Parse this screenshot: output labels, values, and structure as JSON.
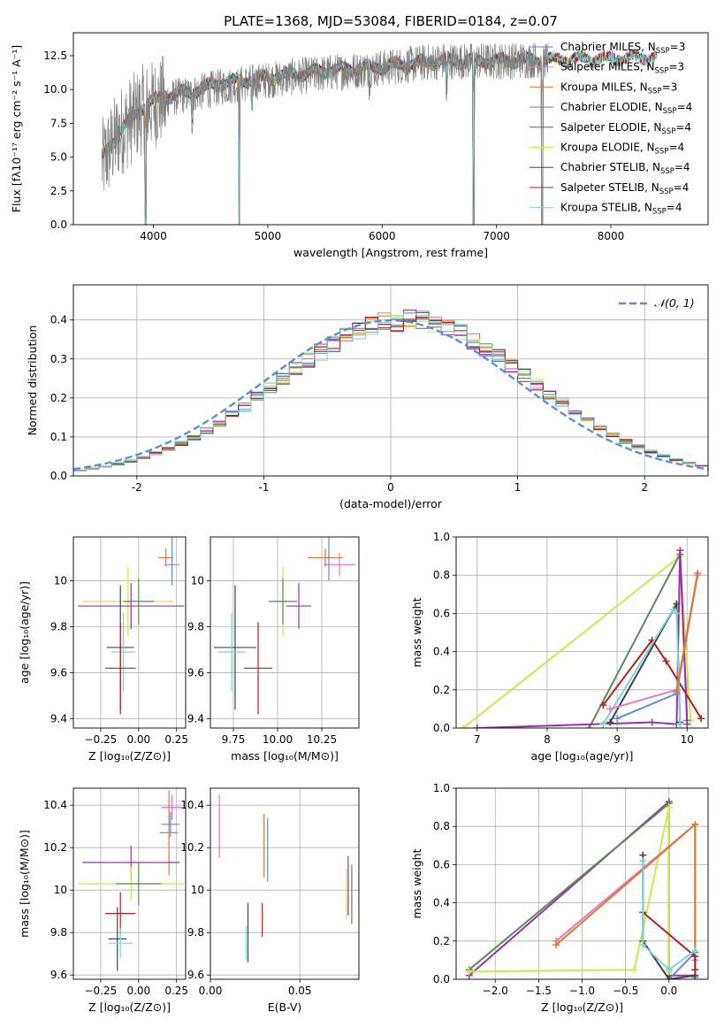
{
  "figure": {
    "title": "PLATE=1368, MJD=53084, FIBERID=0184, z=0.07"
  },
  "colors": {
    "data": "#808080",
    "Chabrier MILES": "#5b8fd6",
    "Salpeter MILES": "#e377c2",
    "Kroupa MILES": "#d97a2b",
    "Chabrier ELODIE": "#5a8a5a",
    "Salpeter ELODIE": "#9b30b0",
    "Kroupa ELODIE": "#cde84a",
    "Chabrier STELIB": "#444444",
    "Salpeter STELIB": "#b22222",
    "Kroupa STELIB": "#7fd4d8",
    "normal": "#5b8fd6"
  },
  "chart_data": [
    {
      "id": "spectrum",
      "type": "line",
      "xlabel": "wavelength [Angstrom, rest frame]",
      "ylabel": "Flux [fλ10⁻¹⁷ erg cm⁻² s⁻¹ A⁻¹]",
      "xlim": [
        3300,
        8850
      ],
      "ylim": [
        0,
        14.2
      ],
      "xticks": [
        4000,
        5000,
        6000,
        7000,
        8000
      ],
      "yticks": [
        0.0,
        2.5,
        5.0,
        7.5,
        10.0,
        12.5
      ],
      "legend_position": "top-right",
      "legend": [
        {
          "model": "Chabrier MILES",
          "label": "Chabrier MILES, N",
          "sub": "SSP",
          "tail": "=3"
        },
        {
          "model": "Salpeter MILES",
          "label": "Salpeter MILES, N",
          "sub": "SSP",
          "tail": "=3"
        },
        {
          "model": "Kroupa MILES",
          "label": "Kroupa MILES, N",
          "sub": "SSP",
          "tail": "=3"
        },
        {
          "model": "Chabrier ELODIE",
          "label": "Chabrier ELODIE, N",
          "sub": "SSP",
          "tail": "=4"
        },
        {
          "model": "Salpeter ELODIE",
          "label": "Salpeter ELODIE, N",
          "sub": "SSP",
          "tail": "=4"
        },
        {
          "model": "Kroupa ELODIE",
          "label": "Kroupa ELODIE, N",
          "sub": "SSP",
          "tail": "=4"
        },
        {
          "model": "Chabrier STELIB",
          "label": "Chabrier STELIB, N",
          "sub": "SSP",
          "tail": "=4"
        },
        {
          "model": "Salpeter STELIB",
          "label": "Salpeter STELIB, N",
          "sub": "SSP",
          "tail": "=4"
        },
        {
          "model": "Kroupa STELIB",
          "label": "Kroupa STELIB, N",
          "sub": "SSP",
          "tail": "=4"
        }
      ],
      "continuum": [
        [
          3550,
          4.5
        ],
        [
          3700,
          6.8
        ],
        [
          3900,
          8.5
        ],
        [
          4100,
          9.3
        ],
        [
          4300,
          9.6
        ],
        [
          4600,
          10.2
        ],
        [
          5000,
          10.7
        ],
        [
          5500,
          11.2
        ],
        [
          6000,
          11.6
        ],
        [
          6500,
          12.1
        ],
        [
          7000,
          12.1
        ],
        [
          7400,
          12.2
        ]
      ],
      "model_continuum": [
        [
          3550,
          5.0
        ],
        [
          3700,
          6.8
        ],
        [
          3900,
          8.7
        ],
        [
          4100,
          9.5
        ],
        [
          4300,
          9.8
        ],
        [
          4600,
          10.5
        ],
        [
          5000,
          10.9
        ],
        [
          5500,
          11.4
        ],
        [
          6000,
          11.7
        ],
        [
          6500,
          12.1
        ],
        [
          7000,
          12.1
        ],
        [
          7400,
          12.2
        ],
        [
          8000,
          12.3
        ],
        [
          8400,
          12.4
        ]
      ],
      "data_x_range": [
        3550,
        7450
      ],
      "features": [
        {
          "wavelength": 3933,
          "depth": 9
        },
        {
          "wavelength": 4102,
          "depth": 1.5
        },
        {
          "wavelength": 4340,
          "depth": 1.8
        },
        {
          "wavelength": 4750,
          "depth": 14
        },
        {
          "wavelength": 4861,
          "depth": 1.8
        },
        {
          "wavelength": 5890,
          "depth": 1.2
        },
        {
          "wavelength": 6563,
          "depth": 2.5
        },
        {
          "wavelength": 6800,
          "depth": 14
        },
        {
          "wavelength": 7400,
          "depth": 14
        }
      ]
    },
    {
      "id": "residual-histogram",
      "type": "step",
      "xlabel": "(data-model)/error",
      "ylabel": "Normed distribution",
      "xlim": [
        -2.5,
        2.5
      ],
      "ylim": [
        0,
        0.49
      ],
      "xticks": [
        -2,
        -1,
        0,
        1,
        2
      ],
      "yticks": [
        0.0,
        0.1,
        0.2,
        0.3,
        0.4
      ],
      "grid": true,
      "legend_position": "top-right",
      "reference": {
        "label": "𝒩(0, 1)",
        "mean": 0,
        "sigma": 1
      },
      "bin_edges_range": [
        -2.5,
        2.5
      ],
      "bin_width": 0.1
    },
    {
      "id": "age-vs-Z",
      "type": "errorbar",
      "xlabel": "Z [log₁₀(Z/Z⊙)]",
      "ylabel": "age  [log₁₀(age/yr)]",
      "xlim": [
        -0.43,
        0.31
      ],
      "ylim": [
        9.36,
        10.19
      ],
      "xticks": [
        -0.25,
        0.0,
        0.25
      ],
      "xticklabels": [
        "−0.25",
        "0.00",
        "0.25"
      ],
      "yticks": [
        9.4,
        9.6,
        9.8,
        10.0
      ],
      "grid": true,
      "points": [
        {
          "model": "Kroupa MILES",
          "x": 0.18,
          "y": 10.1,
          "xerr": 0.05,
          "yerr": 0.04
        },
        {
          "model": "Salpeter MILES",
          "x": 0.22,
          "y": 10.07,
          "xerr": 0.05,
          "yerr": 0.05
        },
        {
          "model": "Chabrier MILES",
          "x": 0.22,
          "y": 10.1,
          "xerr": 0.01,
          "yerr": 0.12
        },
        {
          "model": "Kroupa ELODIE",
          "x": -0.07,
          "y": 9.91,
          "xerr": 0.3,
          "yerr": 0.15
        },
        {
          "model": "Chabrier ELODIE",
          "x": 0.0,
          "y": 9.91,
          "xerr": 0.1,
          "yerr": 0.1
        },
        {
          "model": "Salpeter ELODIE",
          "x": -0.05,
          "y": 9.89,
          "xerr": 0.35,
          "yerr": 0.1
        },
        {
          "model": "Chabrier STELIB",
          "x": -0.12,
          "y": 9.71,
          "xerr": 0.09,
          "yerr": 0.27
        },
        {
          "model": "Kroupa STELIB",
          "x": -0.1,
          "y": 9.69,
          "xerr": 0.08,
          "yerr": 0.17
        },
        {
          "model": "Salpeter STELIB",
          "x": -0.12,
          "y": 9.62,
          "xerr": 0.1,
          "yerr": 0.2
        }
      ]
    },
    {
      "id": "age-vs-mass",
      "type": "errorbar",
      "xlabel": "mass [log₁₀(M/M⊙)]",
      "ylabel": "",
      "xlim": [
        9.62,
        10.46
      ],
      "ylim": [
        9.36,
        10.19
      ],
      "xticks": [
        9.75,
        10.0,
        10.25
      ],
      "xticklabels": [
        "9.75",
        "10.00",
        "10.25"
      ],
      "yticks": [
        9.4,
        9.6,
        9.8,
        10.0
      ],
      "grid": true,
      "points": [
        {
          "model": "Kroupa MILES",
          "x": 10.27,
          "y": 10.1,
          "xerr": 0.1,
          "yerr": 0.04
        },
        {
          "model": "Salpeter MILES",
          "x": 10.35,
          "y": 10.07,
          "xerr": 0.09,
          "yerr": 0.05
        },
        {
          "model": "Chabrier MILES",
          "x": 10.29,
          "y": 10.1,
          "xerr": 0.01,
          "yerr": 0.1
        },
        {
          "model": "Kroupa ELODIE",
          "x": 10.03,
          "y": 9.91,
          "xerr": 0.08,
          "yerr": 0.15
        },
        {
          "model": "Chabrier ELODIE",
          "x": 10.03,
          "y": 9.91,
          "xerr": 0.08,
          "yerr": 0.1
        },
        {
          "model": "Salpeter ELODIE",
          "x": 10.12,
          "y": 9.89,
          "xerr": 0.07,
          "yerr": 0.1
        },
        {
          "model": "Chabrier STELIB",
          "x": 9.76,
          "y": 9.71,
          "xerr": 0.12,
          "yerr": 0.27
        },
        {
          "model": "Kroupa STELIB",
          "x": 9.74,
          "y": 9.69,
          "xerr": 0.08,
          "yerr": 0.17
        },
        {
          "model": "Salpeter STELIB",
          "x": 9.89,
          "y": 9.62,
          "xerr": 0.08,
          "yerr": 0.2
        }
      ]
    },
    {
      "id": "weight-vs-age",
      "type": "line",
      "xlabel": "age  [log₁₀(age/yr)]",
      "ylabel": "mass weight",
      "xlim": [
        6.7,
        10.3
      ],
      "ylim": [
        0,
        1.0
      ],
      "xticks": [
        7,
        8,
        9,
        10
      ],
      "yticks": [
        0.0,
        0.2,
        0.4,
        0.6,
        0.8,
        1.0
      ],
      "grid": true,
      "series": [
        {
          "model": "Kroupa ELODIE",
          "x": [
            6.8,
            9.9,
            10.05
          ],
          "y": [
            0.0,
            0.9,
            0.04
          ]
        },
        {
          "model": "Chabrier ELODIE",
          "x": [
            8.6,
            9.9,
            10.0
          ],
          "y": [
            0.0,
            0.91,
            0.04
          ]
        },
        {
          "model": "Salpeter ELODIE",
          "x": [
            7.0,
            9.5,
            9.85,
            9.9,
            10.0
          ],
          "y": [
            0.0,
            0.03,
            0.02,
            0.93,
            0.02
          ]
        },
        {
          "model": "Chabrier STELIB",
          "x": [
            8.9,
            9.85,
            9.9
          ],
          "y": [
            0.03,
            0.65,
            0.03
          ]
        },
        {
          "model": "Salpeter STELIB",
          "x": [
            8.8,
            9.5,
            9.7,
            10.2
          ],
          "y": [
            0.12,
            0.46,
            0.35,
            0.05
          ]
        },
        {
          "model": "Kroupa STELIB",
          "x": [
            8.8,
            9.8,
            9.85,
            9.9
          ],
          "y": [
            0.02,
            0.62,
            0.6,
            0.02
          ]
        },
        {
          "model": "Chabrier MILES",
          "x": [
            9.0,
            9.85,
            10.15
          ],
          "y": [
            0.05,
            0.18,
            0.8
          ]
        },
        {
          "model": "Salpeter MILES",
          "x": [
            8.9,
            9.85,
            10.15
          ],
          "y": [
            0.1,
            0.2,
            0.8
          ]
        },
        {
          "model": "Kroupa MILES",
          "x": [
            9.85,
            10.15
          ],
          "y": [
            0.19,
            0.81
          ]
        }
      ]
    },
    {
      "id": "mass-vs-Z",
      "type": "errorbar",
      "xlabel": "Z [log₁₀(Z/Z⊙)]",
      "ylabel": "mass [log₁₀(M/M⊙)]",
      "xlim": [
        -0.43,
        0.31
      ],
      "ylim": [
        9.58,
        10.48
      ],
      "xticks": [
        -0.25,
        0.0,
        0.25
      ],
      "xticklabels": [
        "−0.25",
        "0.00",
        "0.25"
      ],
      "yticks": [
        9.6,
        9.8,
        10.0,
        10.2,
        10.4
      ],
      "grid": true,
      "points": [
        {
          "model": "Salpeter MILES",
          "x": 0.22,
          "y": 10.39,
          "xerr": 0.07,
          "yerr": 0.06
        },
        {
          "model": "Chabrier MILES",
          "x": 0.21,
          "y": 10.31,
          "xerr": 0.06,
          "yerr": 0.06
        },
        {
          "model": "Kroupa MILES",
          "x": 0.2,
          "y": 10.27,
          "xerr": 0.06,
          "yerr": 0.2
        },
        {
          "model": "Salpeter ELODIE",
          "x": -0.05,
          "y": 10.13,
          "xerr": 0.32,
          "yerr": 0.08
        },
        {
          "model": "Kroupa ELODIE",
          "x": -0.05,
          "y": 10.03,
          "xerr": 0.35,
          "yerr": 0.08
        },
        {
          "model": "Chabrier ELODIE",
          "x": 0.0,
          "y": 10.03,
          "xerr": 0.15,
          "yerr": 0.1
        },
        {
          "model": "Salpeter STELIB",
          "x": -0.12,
          "y": 9.89,
          "xerr": 0.1,
          "yerr": 0.1
        },
        {
          "model": "Chabrier STELIB",
          "x": -0.14,
          "y": 9.77,
          "xerr": 0.06,
          "yerr": 0.15
        },
        {
          "model": "Kroupa STELIB",
          "x": -0.12,
          "y": 9.75,
          "xerr": 0.08,
          "yerr": 0.07
        }
      ]
    },
    {
      "id": "mass-vs-EBV",
      "type": "errorbar",
      "xlabel": "E(B-V)",
      "ylabel": "",
      "xlim": [
        0.0,
        0.083
      ],
      "ylim": [
        9.58,
        10.48
      ],
      "xticks": [
        0.0,
        0.05
      ],
      "xticklabels": [
        "0.00",
        "0.05"
      ],
      "yticks": [
        9.6,
        9.8,
        10.0,
        10.2,
        10.4
      ],
      "grid": true,
      "points": [
        {
          "model": "Salpeter MILES",
          "x": 0.005,
          "y": 10.3,
          "xerr": 0.0,
          "yerr": 0.15
        },
        {
          "model": "Kroupa MILES",
          "x": 0.03,
          "y": 10.21,
          "xerr": 0.0,
          "yerr": 0.15
        },
        {
          "model": "Chabrier MILES",
          "x": 0.032,
          "y": 10.19,
          "xerr": 0.0,
          "yerr": 0.15
        },
        {
          "model": "Salpeter STELIB",
          "x": 0.029,
          "y": 9.86,
          "xerr": 0.0,
          "yerr": 0.08
        },
        {
          "model": "Chabrier STELIB",
          "x": 0.021,
          "y": 9.8,
          "xerr": 0.0,
          "yerr": 0.14
        },
        {
          "model": "Kroupa STELIB",
          "x": 0.02,
          "y": 9.75,
          "xerr": 0.0,
          "yerr": 0.08
        },
        {
          "model": "Salpeter ELODIE",
          "x": 0.077,
          "y": 10.02,
          "xerr": 0.0,
          "yerr": 0.14
        },
        {
          "model": "Kroupa ELODIE",
          "x": 0.076,
          "y": 9.98,
          "xerr": 0.0,
          "yerr": 0.12
        },
        {
          "model": "Chabrier ELODIE",
          "x": 0.079,
          "y": 9.98,
          "xerr": 0.0,
          "yerr": 0.14
        }
      ]
    },
    {
      "id": "weight-vs-Z",
      "type": "line",
      "xlabel": "Z [log₁₀(Z/Z⊙)]",
      "ylabel": "mass weight",
      "xlim": [
        -2.45,
        0.45
      ],
      "ylim": [
        0,
        1.0
      ],
      "xticks": [
        -2.0,
        -1.5,
        -1.0,
        -0.5,
        0.0
      ],
      "xticklabels": [
        "−2.0",
        "−1.5",
        "−1.0",
        "−0.5",
        "0.0"
      ],
      "yticks": [
        0.0,
        0.2,
        0.4,
        0.6,
        0.8,
        1.0
      ],
      "grid": true,
      "series": [
        {
          "model": "Salpeter ELODIE",
          "x": [
            -2.3,
            0.0,
            0.0,
            0.3
          ],
          "y": [
            0.02,
            0.93,
            0.02,
            0.02
          ]
        },
        {
          "model": "Chabrier ELODIE",
          "x": [
            -2.3,
            0.0,
            0.0
          ],
          "y": [
            0.05,
            0.92,
            0.05
          ]
        },
        {
          "model": "Kroupa ELODIE",
          "x": [
            -2.3,
            -0.4,
            0.0,
            0.0
          ],
          "y": [
            0.04,
            0.05,
            0.9,
            0.04
          ]
        },
        {
          "model": "Salpeter MILES",
          "x": [
            -1.3,
            0.3,
            0.3
          ],
          "y": [
            0.2,
            0.81,
            0.1
          ]
        },
        {
          "model": "Kroupa MILES",
          "x": [
            -1.3,
            0.3,
            0.3
          ],
          "y": [
            0.18,
            0.81,
            0.02
          ]
        },
        {
          "model": "Chabrier MILES",
          "x": [
            0.0,
            0.3,
            0.3
          ],
          "y": [
            0.0,
            0.14,
            0.01
          ]
        },
        {
          "model": "Chabrier STELIB",
          "x": [
            -0.3,
            -0.3,
            0.0,
            0.3
          ],
          "y": [
            0.65,
            0.2,
            0.0,
            0.02
          ]
        },
        {
          "model": "Salpeter STELIB",
          "x": [
            -0.3,
            0.3,
            0.3
          ],
          "y": [
            0.35,
            0.12,
            0.05
          ]
        },
        {
          "model": "Kroupa STELIB",
          "x": [
            -0.3,
            -0.3,
            0.0,
            0.3
          ],
          "y": [
            0.62,
            0.18,
            0.05,
            0.15
          ]
        }
      ]
    }
  ]
}
